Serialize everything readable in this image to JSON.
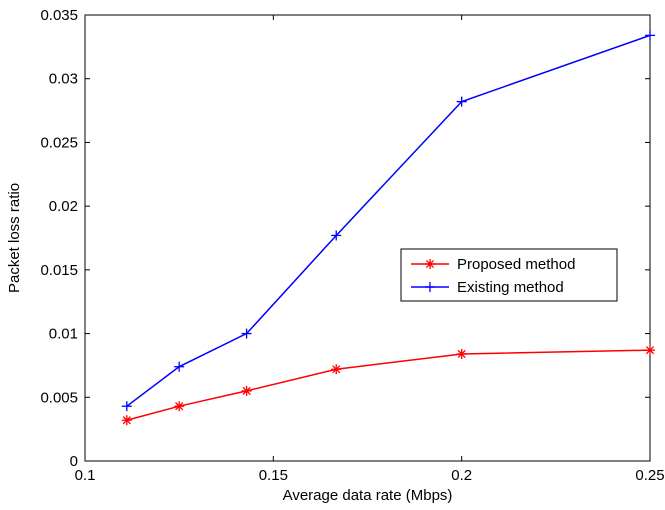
{
  "chart_data": {
    "type": "line",
    "title": "",
    "xlabel": "Average data rate (Mbps)",
    "ylabel": "Packet loss ratio",
    "xlim": [
      0.1,
      0.25
    ],
    "ylim": [
      0,
      0.035
    ],
    "x_ticks": [
      0.1,
      0.15,
      0.2,
      0.25
    ],
    "x_tick_labels": [
      "0.1",
      "0.15",
      "0.2",
      "0.25"
    ],
    "y_ticks": [
      0,
      0.005,
      0.01,
      0.015,
      0.02,
      0.025,
      0.03,
      0.035
    ],
    "y_tick_labels": [
      "0",
      "0.005",
      "0.01",
      "0.015",
      "0.02",
      "0.025",
      "0.03",
      "0.035"
    ],
    "grid": false,
    "legend_position": "right-middle",
    "series": [
      {
        "name": "Proposed method",
        "color": "#ff0000",
        "marker": "asterisk",
        "x": [
          0.1111,
          0.125,
          0.1429,
          0.1667,
          0.2,
          0.25
        ],
        "y": [
          0.0032,
          0.0043,
          0.0055,
          0.0072,
          0.0084,
          0.0087
        ]
      },
      {
        "name": "Existing method",
        "color": "#0000ff",
        "marker": "plus",
        "x": [
          0.1111,
          0.125,
          0.1429,
          0.1667,
          0.2,
          0.25
        ],
        "y": [
          0.0043,
          0.0074,
          0.01,
          0.0177,
          0.0282,
          0.0334
        ]
      }
    ]
  }
}
